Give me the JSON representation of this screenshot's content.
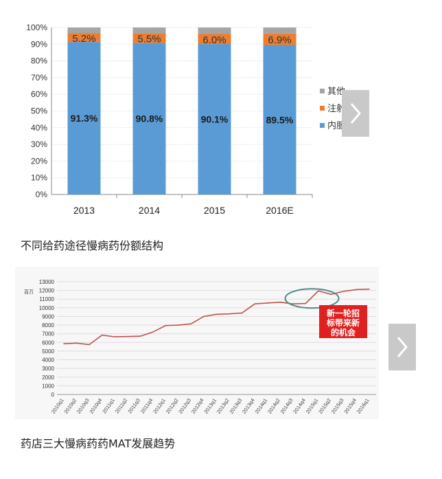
{
  "captions": {
    "chart1": "不同给药途径慢病药份额结构",
    "chart2": "药店三大慢病药药MAT发展趋势"
  },
  "icons": {
    "next": "chevron-right-icon"
  },
  "colors": {
    "oral": "#5b9bd5",
    "injection": "#ed7d31",
    "other": "#a5a5a5",
    "line": "#c0504d",
    "callout_bg": "#e02020",
    "callout_ring": "#4f8a8b"
  },
  "chart_data": [
    {
      "type": "bar",
      "stacked": true,
      "categories": [
        "2013",
        "2014",
        "2015",
        "2016E"
      ],
      "series": [
        {
          "name": "内服",
          "values": [
            91.3,
            90.8,
            90.1,
            89.5
          ],
          "labels": [
            "91.3%",
            "90.8%",
            "90.1%",
            "89.5%"
          ]
        },
        {
          "name": "注射",
          "values": [
            5.2,
            5.5,
            6.0,
            6.9
          ],
          "labels": [
            "5.2%",
            "5.5%",
            "6.0%",
            "6.9%"
          ]
        },
        {
          "name": "其他",
          "values": [
            3.5,
            3.7,
            3.9,
            3.6
          ]
        }
      ],
      "ylim": [
        0,
        100
      ],
      "yticks": [
        "0%",
        "10%",
        "20%",
        "30%",
        "40%",
        "50%",
        "60%",
        "70%",
        "80%",
        "90%",
        "100%"
      ],
      "legend": [
        "其他",
        "注射",
        "内服"
      ],
      "legend_position": "right",
      "grid": true
    },
    {
      "type": "line",
      "ylabel": "百万",
      "ylim": [
        0,
        13000
      ],
      "yticks": [
        "0",
        "1000",
        "2000",
        "3000",
        "4000",
        "5000",
        "6000",
        "7000",
        "8000",
        "9000",
        "10000",
        "11000",
        "12000",
        "13000"
      ],
      "x": [
        "2010q1",
        "2010q2",
        "2010q3",
        "2010q4",
        "2011q1",
        "2011q2",
        "2011q3",
        "2011q4",
        "2012q1",
        "2012q2",
        "2012q3",
        "2012q4",
        "2013q1",
        "2013q2",
        "2013q3",
        "2013q4",
        "2014q1",
        "2014q2",
        "2014q3",
        "2014q4",
        "2015q1",
        "2015q2",
        "2015q3",
        "2015q4",
        "2016q1"
      ],
      "series": [
        {
          "values": [
            5850,
            5920,
            5750,
            6850,
            6650,
            6680,
            6720,
            7200,
            7950,
            8000,
            8150,
            9000,
            9250,
            9300,
            9400,
            10450,
            10550,
            10650,
            10450,
            10500,
            11950,
            11550,
            11900,
            12100,
            12150
          ]
        }
      ],
      "annotation": "新一轮招标带来新的机会",
      "grid": true
    }
  ]
}
